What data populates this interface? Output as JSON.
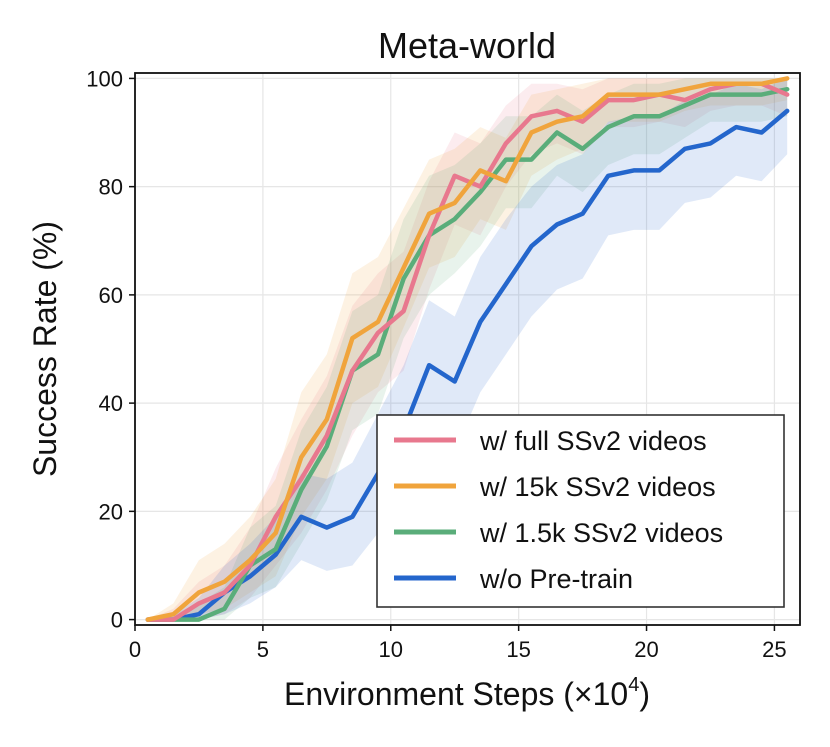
{
  "chart_data": {
    "type": "line",
    "title": "Meta-world",
    "xlabel": "Environment Steps (×10",
    "xlabel_exponent": "4",
    "xlabel_close": ")",
    "ylabel": "Success Rate (%)",
    "xlim": [
      0,
      26
    ],
    "ylim": [
      -1,
      101
    ],
    "xticks": [
      0,
      5,
      10,
      15,
      20,
      25
    ],
    "yticks": [
      0,
      20,
      40,
      60,
      80,
      100
    ],
    "grid": true,
    "legend_position": "bottom-right",
    "x": [
      0.5,
      1.5,
      2.5,
      3.5,
      4.5,
      5.5,
      6.5,
      7.5,
      8.5,
      9.5,
      10.5,
      11.5,
      12.5,
      13.5,
      14.5,
      15.5,
      16.5,
      17.5,
      18.5,
      19.5,
      20.5,
      21.5,
      22.5,
      23.5,
      24.5,
      25.5
    ],
    "series": [
      {
        "name": "w/ full SSv2 videos",
        "color": "#e8788e",
        "values": [
          0,
          0,
          3,
          5,
          10,
          19,
          26,
          34,
          46,
          53,
          57,
          71,
          82,
          80,
          88,
          93,
          94,
          92,
          96,
          96,
          97,
          96,
          98,
          99,
          99,
          97
        ],
        "lower": [
          0,
          0,
          0,
          1,
          4,
          10,
          16,
          24,
          34,
          42,
          46,
          61,
          73,
          71,
          80,
          86,
          88,
          86,
          91,
          91,
          92,
          91,
          94,
          95,
          95,
          93
        ],
        "upper": [
          0,
          2,
          7,
          10,
          17,
          28,
          37,
          45,
          58,
          64,
          68,
          81,
          90,
          88,
          95,
          99,
          99,
          98,
          100,
          100,
          100,
          100,
          100,
          100,
          100,
          100
        ]
      },
      {
        "name": "w/ 15k SSv2 videos",
        "color": "#f0a43c",
        "values": [
          0,
          1,
          5,
          7,
          11,
          16,
          30,
          37,
          52,
          55,
          65,
          75,
          77,
          83,
          81,
          90,
          92,
          93,
          97,
          97,
          97,
          98,
          99,
          99,
          99,
          100
        ],
        "lower": [
          0,
          0,
          1,
          2,
          5,
          8,
          19,
          26,
          40,
          43,
          54,
          65,
          67,
          74,
          72,
          82,
          85,
          87,
          92,
          92,
          92,
          94,
          95,
          95,
          95,
          96
        ],
        "upper": [
          0,
          3,
          11,
          14,
          19,
          26,
          42,
          49,
          64,
          67,
          76,
          85,
          87,
          91,
          89,
          97,
          98,
          99,
          100,
          100,
          100,
          100,
          100,
          100,
          100,
          100
        ]
      },
      {
        "name": "w/ 1.5k SSv2 videos",
        "color": "#5aad7a",
        "values": [
          0,
          0,
          0,
          2,
          10,
          13,
          24,
          32,
          46,
          49,
          63,
          71,
          74,
          79,
          85,
          85,
          90,
          87,
          91,
          93,
          93,
          95,
          97,
          97,
          97,
          98
        ],
        "lower": [
          0,
          0,
          0,
          0,
          4,
          6,
          14,
          22,
          35,
          38,
          52,
          60,
          64,
          69,
          76,
          76,
          82,
          79,
          84,
          86,
          86,
          89,
          92,
          92,
          92,
          93
        ],
        "upper": [
          0,
          1,
          3,
          6,
          17,
          21,
          35,
          43,
          57,
          60,
          74,
          82,
          84,
          88,
          93,
          93,
          97,
          94,
          97,
          99,
          99,
          100,
          100,
          100,
          100,
          100
        ]
      },
      {
        "name": "w/o Pre-train",
        "color": "#2466cc",
        "values": [
          0,
          0,
          1,
          5,
          8,
          12,
          19,
          17,
          19,
          27,
          35,
          47,
          44,
          55,
          62,
          69,
          73,
          75,
          82,
          83,
          83,
          87,
          88,
          91,
          90,
          94
        ],
        "lower": [
          0,
          0,
          0,
          1,
          3,
          6,
          11,
          9,
          10,
          16,
          23,
          34,
          31,
          42,
          49,
          56,
          61,
          63,
          71,
          72,
          72,
          77,
          78,
          82,
          81,
          86
        ],
        "upper": [
          0,
          1,
          4,
          10,
          14,
          19,
          27,
          26,
          29,
          38,
          47,
          59,
          56,
          67,
          74,
          80,
          84,
          86,
          92,
          93,
          93,
          96,
          97,
          99,
          98,
          100
        ]
      }
    ]
  }
}
